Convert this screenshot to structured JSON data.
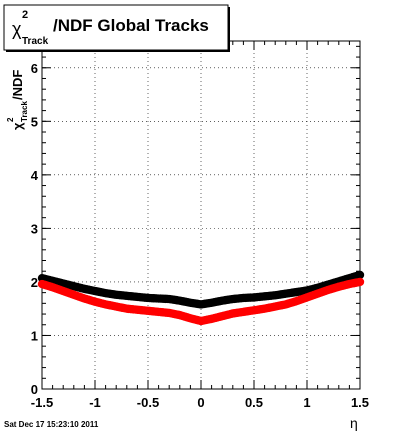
{
  "chart_data": {
    "type": "scatter",
    "title_main": "/NDF  Global Tracks",
    "title_chi": "χ",
    "title_sup": "2",
    "title_sub": "Track",
    "ylabel_chi": "χ",
    "ylabel_sup": "2",
    "ylabel_sub": "Track",
    "ylabel_tail": "/NDF",
    "xlabel": "η",
    "xlim": [
      -1.5,
      1.5
    ],
    "ylim": [
      0,
      6.5
    ],
    "x_ticks": [
      "-1.5",
      "-1",
      "-0.5",
      "0",
      "0.5",
      "1",
      "1.5"
    ],
    "y_ticks": [
      "0",
      "1",
      "2",
      "3",
      "4",
      "5",
      "6"
    ],
    "grid": true,
    "series": [
      {
        "color": "#000000",
        "x": [
          -1.5,
          -1.4,
          -1.3,
          -1.2,
          -1.1,
          -1.0,
          -0.9,
          -0.8,
          -0.7,
          -0.6,
          -0.5,
          -0.4,
          -0.3,
          -0.2,
          -0.1,
          0.0,
          0.1,
          0.2,
          0.3,
          0.4,
          0.5,
          0.6,
          0.7,
          0.8,
          0.9,
          1.0,
          1.1,
          1.2,
          1.3,
          1.4,
          1.5
        ],
        "y": [
          2.07,
          2.02,
          1.97,
          1.92,
          1.87,
          1.83,
          1.79,
          1.76,
          1.74,
          1.72,
          1.7,
          1.69,
          1.68,
          1.65,
          1.61,
          1.58,
          1.61,
          1.65,
          1.68,
          1.7,
          1.71,
          1.73,
          1.75,
          1.78,
          1.81,
          1.84,
          1.89,
          1.95,
          2.01,
          2.07,
          2.13
        ]
      },
      {
        "color": "#ff0000",
        "x": [
          -1.5,
          -1.4,
          -1.3,
          -1.2,
          -1.1,
          -1.0,
          -0.9,
          -0.8,
          -0.7,
          -0.6,
          -0.5,
          -0.4,
          -0.3,
          -0.2,
          -0.1,
          0.0,
          0.1,
          0.2,
          0.3,
          0.4,
          0.5,
          0.6,
          0.7,
          0.8,
          0.9,
          1.0,
          1.1,
          1.2,
          1.3,
          1.4,
          1.5
        ],
        "y": [
          1.96,
          1.9,
          1.83,
          1.76,
          1.69,
          1.63,
          1.58,
          1.54,
          1.5,
          1.48,
          1.46,
          1.44,
          1.42,
          1.38,
          1.32,
          1.27,
          1.31,
          1.36,
          1.41,
          1.44,
          1.47,
          1.5,
          1.54,
          1.58,
          1.64,
          1.71,
          1.78,
          1.85,
          1.91,
          1.96,
          2.0
        ]
      }
    ]
  },
  "footer": {
    "timestamp": "Sat Dec 17 15:23:10 2011"
  }
}
